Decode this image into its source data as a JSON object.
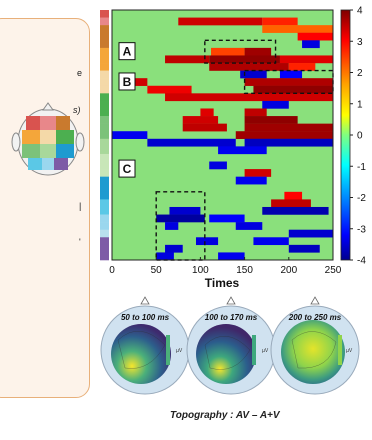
{
  "left_panel": {
    "fragments": [
      "e",
      "s)",
      "|",
      "'"
    ]
  },
  "chart_data": {
    "type": "heatmap",
    "xlabel": "Times",
    "ylabel": "",
    "xlim": [
      0,
      250
    ],
    "x_ticks": [
      0,
      50,
      100,
      150,
      200,
      250
    ],
    "colorbar": {
      "min": -4,
      "max": 4,
      "ticks": [
        4,
        3,
        2,
        1,
        0,
        -1,
        -2,
        -3,
        -4
      ]
    },
    "background_value": 0.5,
    "row_count": 33,
    "group_colors": [
      "#d9534f",
      "#e8878a",
      "#c97a2e",
      "#c97a2e",
      "#c97a2e",
      "#f4a63a",
      "#f4a63a",
      "#f4a63a",
      "#f4d9a8",
      "#f4d9a8",
      "#f4d9a8",
      "#4caf50",
      "#4caf50",
      "#4caf50",
      "#7cc27a",
      "#7cc27a",
      "#7cc27a",
      "#a8d89a",
      "#a8d89a",
      "#c8e6b8",
      "#c8e6b8",
      "#c8e6b8",
      "#1e9bd0",
      "#1e9bd0",
      "#1e9bd0",
      "#5bc8e6",
      "#5bc8e6",
      "#9ad7ee",
      "#9ad7ee",
      "#b9e0ee",
      "#7d5ba6",
      "#7d5ba6",
      "#7d5ba6"
    ],
    "segments": [
      {
        "row": 1,
        "x0": 75,
        "x1": 170,
        "v": 3.5
      },
      {
        "row": 1,
        "x0": 170,
        "x1": 210,
        "v": 3.0
      },
      {
        "row": 2,
        "x0": 170,
        "x1": 250,
        "v": 2.6
      },
      {
        "row": 3,
        "x0": 210,
        "x1": 250,
        "v": 3.2
      },
      {
        "row": 4,
        "x0": 215,
        "x1": 235,
        "v": -3.5
      },
      {
        "row": 5,
        "x0": 112,
        "x1": 150,
        "v": 2.8
      },
      {
        "row": 5,
        "x0": 150,
        "x1": 180,
        "v": 3.8
      },
      {
        "row": 6,
        "x0": 60,
        "x1": 110,
        "v": 3.6
      },
      {
        "row": 6,
        "x0": 110,
        "x1": 190,
        "v": 3.9
      },
      {
        "row": 6,
        "x0": 190,
        "x1": 250,
        "v": 3.4
      },
      {
        "row": 7,
        "x0": 110,
        "x1": 200,
        "v": 3.7
      },
      {
        "row": 7,
        "x0": 200,
        "x1": 230,
        "v": 3.0
      },
      {
        "row": 8,
        "x0": 145,
        "x1": 175,
        "v": -3.6
      },
      {
        "row": 8,
        "x0": 190,
        "x1": 215,
        "v": -3.3
      },
      {
        "row": 9,
        "x0": 10,
        "x1": 40,
        "v": 3.5
      },
      {
        "row": 9,
        "x0": 150,
        "x1": 250,
        "v": 3.7
      },
      {
        "row": 10,
        "x0": 40,
        "x1": 90,
        "v": 3.3
      },
      {
        "row": 10,
        "x0": 160,
        "x1": 250,
        "v": 3.9
      },
      {
        "row": 11,
        "x0": 60,
        "x1": 250,
        "v": 3.5
      },
      {
        "row": 12,
        "x0": 170,
        "x1": 200,
        "v": -3.5
      },
      {
        "row": 13,
        "x0": 100,
        "x1": 115,
        "v": 3.4
      },
      {
        "row": 13,
        "x0": 150,
        "x1": 175,
        "v": 3.6
      },
      {
        "row": 14,
        "x0": 80,
        "x1": 120,
        "v": 3.5
      },
      {
        "row": 14,
        "x0": 150,
        "x1": 210,
        "v": 3.9
      },
      {
        "row": 15,
        "x0": 80,
        "x1": 130,
        "v": 3.6
      },
      {
        "row": 15,
        "x0": 150,
        "x1": 250,
        "v": 3.8
      },
      {
        "row": 16,
        "x0": 0,
        "x1": 40,
        "v": -3.4
      },
      {
        "row": 16,
        "x0": 140,
        "x1": 250,
        "v": 3.8
      },
      {
        "row": 17,
        "x0": 40,
        "x1": 140,
        "v": -3.6
      },
      {
        "row": 17,
        "x0": 150,
        "x1": 250,
        "v": -3.7
      },
      {
        "row": 18,
        "x0": 120,
        "x1": 175,
        "v": -3.4
      },
      {
        "row": 20,
        "x0": 110,
        "x1": 130,
        "v": -3.5
      },
      {
        "row": 21,
        "x0": 150,
        "x1": 180,
        "v": 3.5
      },
      {
        "row": 22,
        "x0": 140,
        "x1": 175,
        "v": -3.4
      },
      {
        "row": 24,
        "x0": 195,
        "x1": 215,
        "v": 3.2
      },
      {
        "row": 25,
        "x0": 180,
        "x1": 225,
        "v": 3.6
      },
      {
        "row": 26,
        "x0": 65,
        "x1": 100,
        "v": -3.6
      },
      {
        "row": 26,
        "x0": 170,
        "x1": 245,
        "v": -3.8
      },
      {
        "row": 27,
        "x0": 50,
        "x1": 105,
        "v": -3.9
      },
      {
        "row": 27,
        "x0": 110,
        "x1": 150,
        "v": -3.3
      },
      {
        "row": 28,
        "x0": 60,
        "x1": 75,
        "v": -3.5
      },
      {
        "row": 28,
        "x0": 140,
        "x1": 170,
        "v": -3.5
      },
      {
        "row": 29,
        "x0": 200,
        "x1": 250,
        "v": -3.6
      },
      {
        "row": 30,
        "x0": 95,
        "x1": 120,
        "v": -3.5
      },
      {
        "row": 30,
        "x0": 160,
        "x1": 200,
        "v": -3.4
      },
      {
        "row": 31,
        "x0": 60,
        "x1": 80,
        "v": -3.6
      },
      {
        "row": 31,
        "x0": 200,
        "x1": 235,
        "v": -3.7
      },
      {
        "row": 32,
        "x0": 50,
        "x1": 70,
        "v": -3.5
      },
      {
        "row": 32,
        "x0": 120,
        "x1": 150,
        "v": -3.4
      }
    ],
    "boxes": [
      {
        "x0": 105,
        "x1": 185,
        "row0": 4,
        "row1": 7
      },
      {
        "x0": 150,
        "x1": 250,
        "row0": 8,
        "row1": 11
      },
      {
        "x0": 50,
        "x1": 105,
        "row0": 24,
        "row1": 33
      }
    ],
    "group_labels": [
      {
        "text": "A",
        "row": 5.5
      },
      {
        "text": "B",
        "row": 9.5
      },
      {
        "text": "C",
        "row": 21
      }
    ],
    "topographies": [
      {
        "label": "50 to 100 ms",
        "unit": "µV"
      },
      {
        "label": "100 to 170 ms",
        "unit": "µV"
      },
      {
        "label": "200 to 250 ms",
        "unit": "µV"
      }
    ],
    "topography_caption": "Topography : AV – A+V"
  }
}
